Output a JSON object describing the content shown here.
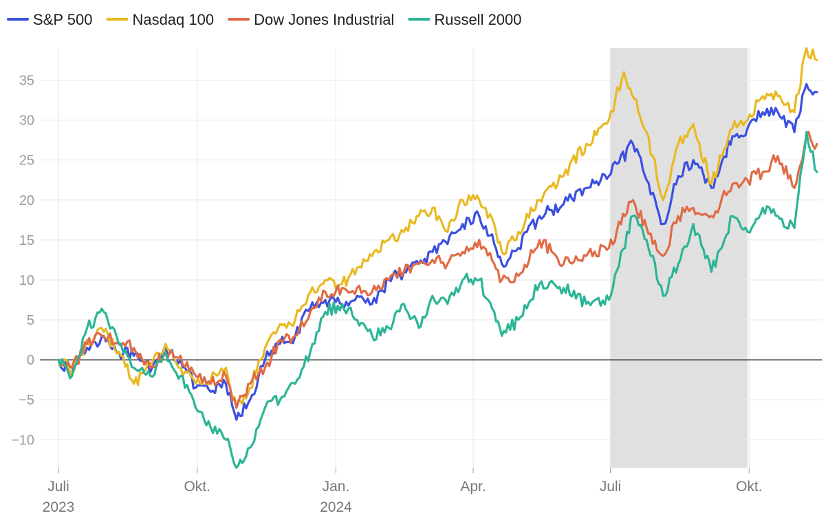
{
  "chart_data": {
    "type": "line",
    "title": "",
    "xlabel": "",
    "ylabel": "",
    "ylim": [
      -13.5,
      39
    ],
    "yticks": [
      -10,
      -5,
      0,
      5,
      10,
      15,
      20,
      25,
      30,
      35
    ],
    "grid": true,
    "legend_position": "top-left",
    "shaded_region": {
      "from": "2024-07-01",
      "to": "2024-09-30",
      "color": "#e0e0e0"
    },
    "x_start": "2023-07-01",
    "x_end": "2024-11-15",
    "x_ticks": [
      {
        "date": "2023-07-01",
        "label": "Juli",
        "year": "2023"
      },
      {
        "date": "2023-10-01",
        "label": "Okt.",
        "year": ""
      },
      {
        "date": "2024-01-01",
        "label": "Jan.",
        "year": "2024"
      },
      {
        "date": "2024-04-01",
        "label": "Apr.",
        "year": ""
      },
      {
        "date": "2024-07-01",
        "label": "Juli",
        "year": ""
      },
      {
        "date": "2024-10-01",
        "label": "Okt.",
        "year": ""
      }
    ],
    "series": [
      {
        "name": "S&P 500",
        "color": "#3b4fe0",
        "points": [
          [
            "2023-07-01",
            0
          ],
          [
            "2023-07-10",
            -1.5
          ],
          [
            "2023-07-20",
            1.5
          ],
          [
            "2023-07-31",
            3
          ],
          [
            "2023-08-10",
            1
          ],
          [
            "2023-08-20",
            0.5
          ],
          [
            "2023-08-31",
            -1.5
          ],
          [
            "2023-09-10",
            1.5
          ],
          [
            "2023-09-20",
            0
          ],
          [
            "2023-09-30",
            -3.5
          ],
          [
            "2023-10-10",
            -4
          ],
          [
            "2023-10-20",
            -3
          ],
          [
            "2023-10-27",
            -7.5
          ],
          [
            "2023-11-05",
            -5
          ],
          [
            "2023-11-15",
            0
          ],
          [
            "2023-11-25",
            2
          ],
          [
            "2023-12-05",
            3
          ],
          [
            "2023-12-15",
            6.5
          ],
          [
            "2023-12-25",
            7.5
          ],
          [
            "2024-01-05",
            7
          ],
          [
            "2024-01-15",
            8
          ],
          [
            "2024-01-25",
            7
          ],
          [
            "2024-02-05",
            10
          ],
          [
            "2024-02-15",
            11
          ],
          [
            "2024-02-25",
            12
          ],
          [
            "2024-03-05",
            13.5
          ],
          [
            "2024-03-15",
            14.5
          ],
          [
            "2024-03-25",
            17
          ],
          [
            "2024-04-05",
            18
          ],
          [
            "2024-04-15",
            14.5
          ],
          [
            "2024-04-20",
            12
          ],
          [
            "2024-05-01",
            14
          ],
          [
            "2024-05-15",
            18
          ],
          [
            "2024-05-31",
            19.5
          ],
          [
            "2024-06-15",
            21.5
          ],
          [
            "2024-06-30",
            23
          ],
          [
            "2024-07-16",
            27
          ],
          [
            "2024-07-25",
            22.5
          ],
          [
            "2024-08-05",
            17
          ],
          [
            "2024-08-15",
            23
          ],
          [
            "2024-08-25",
            25
          ],
          [
            "2024-09-06",
            21.5
          ],
          [
            "2024-09-20",
            28
          ],
          [
            "2024-09-30",
            29
          ],
          [
            "2024-10-10",
            31
          ],
          [
            "2024-10-20",
            31
          ],
          [
            "2024-10-31",
            28.5
          ],
          [
            "2024-11-08",
            34.5
          ],
          [
            "2024-11-15",
            33.5
          ]
        ]
      },
      {
        "name": "Nasdaq 100",
        "color": "#e8b923",
        "points": [
          [
            "2023-07-01",
            0
          ],
          [
            "2023-07-10",
            -1.5
          ],
          [
            "2023-07-20",
            2.5
          ],
          [
            "2023-07-31",
            3.5
          ],
          [
            "2023-08-10",
            1
          ],
          [
            "2023-08-20",
            -3
          ],
          [
            "2023-08-31",
            -0.5
          ],
          [
            "2023-09-10",
            2
          ],
          [
            "2023-09-20",
            -1
          ],
          [
            "2023-09-30",
            -3
          ],
          [
            "2023-10-10",
            -2.5
          ],
          [
            "2023-10-20",
            -1
          ],
          [
            "2023-10-27",
            -6
          ],
          [
            "2023-11-05",
            -3.5
          ],
          [
            "2023-11-15",
            1.5
          ],
          [
            "2023-11-25",
            4.5
          ],
          [
            "2023-12-05",
            5
          ],
          [
            "2023-12-15",
            8.5
          ],
          [
            "2023-12-25",
            10
          ],
          [
            "2024-01-05",
            9.5
          ],
          [
            "2024-01-15",
            11.5
          ],
          [
            "2024-01-25",
            13
          ],
          [
            "2024-02-05",
            15
          ],
          [
            "2024-02-15",
            16
          ],
          [
            "2024-02-25",
            18
          ],
          [
            "2024-03-05",
            19
          ],
          [
            "2024-03-15",
            16
          ],
          [
            "2024-03-25",
            20
          ],
          [
            "2024-04-05",
            20
          ],
          [
            "2024-04-15",
            17
          ],
          [
            "2024-04-20",
            13.5
          ],
          [
            "2024-05-01",
            16
          ],
          [
            "2024-05-15",
            20
          ],
          [
            "2024-05-31",
            23
          ],
          [
            "2024-06-15",
            27
          ],
          [
            "2024-06-30",
            30
          ],
          [
            "2024-07-10",
            36
          ],
          [
            "2024-07-25",
            28.5
          ],
          [
            "2024-08-05",
            20
          ],
          [
            "2024-08-15",
            27
          ],
          [
            "2024-08-25",
            29.5
          ],
          [
            "2024-09-06",
            22
          ],
          [
            "2024-09-20",
            29
          ],
          [
            "2024-09-30",
            30
          ],
          [
            "2024-10-10",
            33
          ],
          [
            "2024-10-20",
            33
          ],
          [
            "2024-10-31",
            31
          ],
          [
            "2024-11-08",
            39
          ],
          [
            "2024-11-15",
            37.5
          ]
        ]
      },
      {
        "name": "Dow Jones Industrial",
        "color": "#e06b45",
        "points": [
          [
            "2023-07-01",
            0
          ],
          [
            "2023-07-10",
            -1
          ],
          [
            "2023-07-20",
            2
          ],
          [
            "2023-07-31",
            3
          ],
          [
            "2023-08-10",
            2
          ],
          [
            "2023-08-20",
            1.5
          ],
          [
            "2023-08-31",
            -1
          ],
          [
            "2023-09-10",
            1
          ],
          [
            "2023-09-20",
            0.5
          ],
          [
            "2023-09-30",
            -2
          ],
          [
            "2023-10-10",
            -3
          ],
          [
            "2023-10-20",
            -2
          ],
          [
            "2023-10-27",
            -6
          ],
          [
            "2023-11-05",
            -3
          ],
          [
            "2023-11-15",
            -1
          ],
          [
            "2023-11-25",
            2.5
          ],
          [
            "2023-12-05",
            3
          ],
          [
            "2023-12-15",
            6
          ],
          [
            "2023-12-25",
            8.5
          ],
          [
            "2024-01-05",
            9
          ],
          [
            "2024-01-15",
            9
          ],
          [
            "2024-01-25",
            8.5
          ],
          [
            "2024-02-05",
            10
          ],
          [
            "2024-02-15",
            11
          ],
          [
            "2024-02-25",
            12
          ],
          [
            "2024-03-05",
            12.5
          ],
          [
            "2024-03-15",
            12
          ],
          [
            "2024-03-25",
            13.5
          ],
          [
            "2024-04-05",
            15
          ],
          [
            "2024-04-15",
            12
          ],
          [
            "2024-04-20",
            10
          ],
          [
            "2024-05-01",
            10.5
          ],
          [
            "2024-05-15",
            15
          ],
          [
            "2024-05-31",
            12
          ],
          [
            "2024-06-15",
            13
          ],
          [
            "2024-06-30",
            14
          ],
          [
            "2024-07-16",
            20
          ],
          [
            "2024-07-25",
            16.5
          ],
          [
            "2024-08-05",
            13
          ],
          [
            "2024-08-15",
            18
          ],
          [
            "2024-08-25",
            19
          ],
          [
            "2024-09-06",
            18
          ],
          [
            "2024-09-20",
            22
          ],
          [
            "2024-09-30",
            22.5
          ],
          [
            "2024-10-10",
            23.5
          ],
          [
            "2024-10-20",
            25.5
          ],
          [
            "2024-10-31",
            21.5
          ],
          [
            "2024-11-08",
            28
          ],
          [
            "2024-11-15",
            27
          ]
        ]
      },
      {
        "name": "Russell 2000",
        "color": "#2bb596",
        "points": [
          [
            "2023-07-01",
            0
          ],
          [
            "2023-07-10",
            -2
          ],
          [
            "2023-07-20",
            4
          ],
          [
            "2023-07-31",
            6
          ],
          [
            "2023-08-10",
            2
          ],
          [
            "2023-08-20",
            -1
          ],
          [
            "2023-08-31",
            -2
          ],
          [
            "2023-09-10",
            1
          ],
          [
            "2023-09-20",
            -2
          ],
          [
            "2023-09-30",
            -6
          ],
          [
            "2023-10-10",
            -8.5
          ],
          [
            "2023-10-20",
            -10
          ],
          [
            "2023-10-27",
            -13.5
          ],
          [
            "2023-11-05",
            -11
          ],
          [
            "2023-11-15",
            -6
          ],
          [
            "2023-11-25",
            -5
          ],
          [
            "2023-12-05",
            -3
          ],
          [
            "2023-12-15",
            1
          ],
          [
            "2023-12-25",
            6
          ],
          [
            "2024-01-05",
            7
          ],
          [
            "2024-01-15",
            5
          ],
          [
            "2024-01-25",
            3
          ],
          [
            "2024-02-05",
            4
          ],
          [
            "2024-02-15",
            7
          ],
          [
            "2024-02-25",
            4
          ],
          [
            "2024-03-05",
            8
          ],
          [
            "2024-03-15",
            7
          ],
          [
            "2024-03-25",
            10
          ],
          [
            "2024-04-05",
            10
          ],
          [
            "2024-04-15",
            6
          ],
          [
            "2024-04-20",
            3
          ],
          [
            "2024-05-01",
            5
          ],
          [
            "2024-05-15",
            9.5
          ],
          [
            "2024-05-31",
            9
          ],
          [
            "2024-06-15",
            7
          ],
          [
            "2024-06-30",
            7.5
          ],
          [
            "2024-07-16",
            18
          ],
          [
            "2024-07-25",
            15
          ],
          [
            "2024-08-05",
            8
          ],
          [
            "2024-08-15",
            12
          ],
          [
            "2024-08-25",
            17
          ],
          [
            "2024-09-06",
            11
          ],
          [
            "2024-09-20",
            18
          ],
          [
            "2024-09-30",
            16
          ],
          [
            "2024-10-10",
            19
          ],
          [
            "2024-10-20",
            18
          ],
          [
            "2024-10-31",
            16.5
          ],
          [
            "2024-11-08",
            28.5
          ],
          [
            "2024-11-15",
            23.5
          ]
        ]
      }
    ]
  }
}
